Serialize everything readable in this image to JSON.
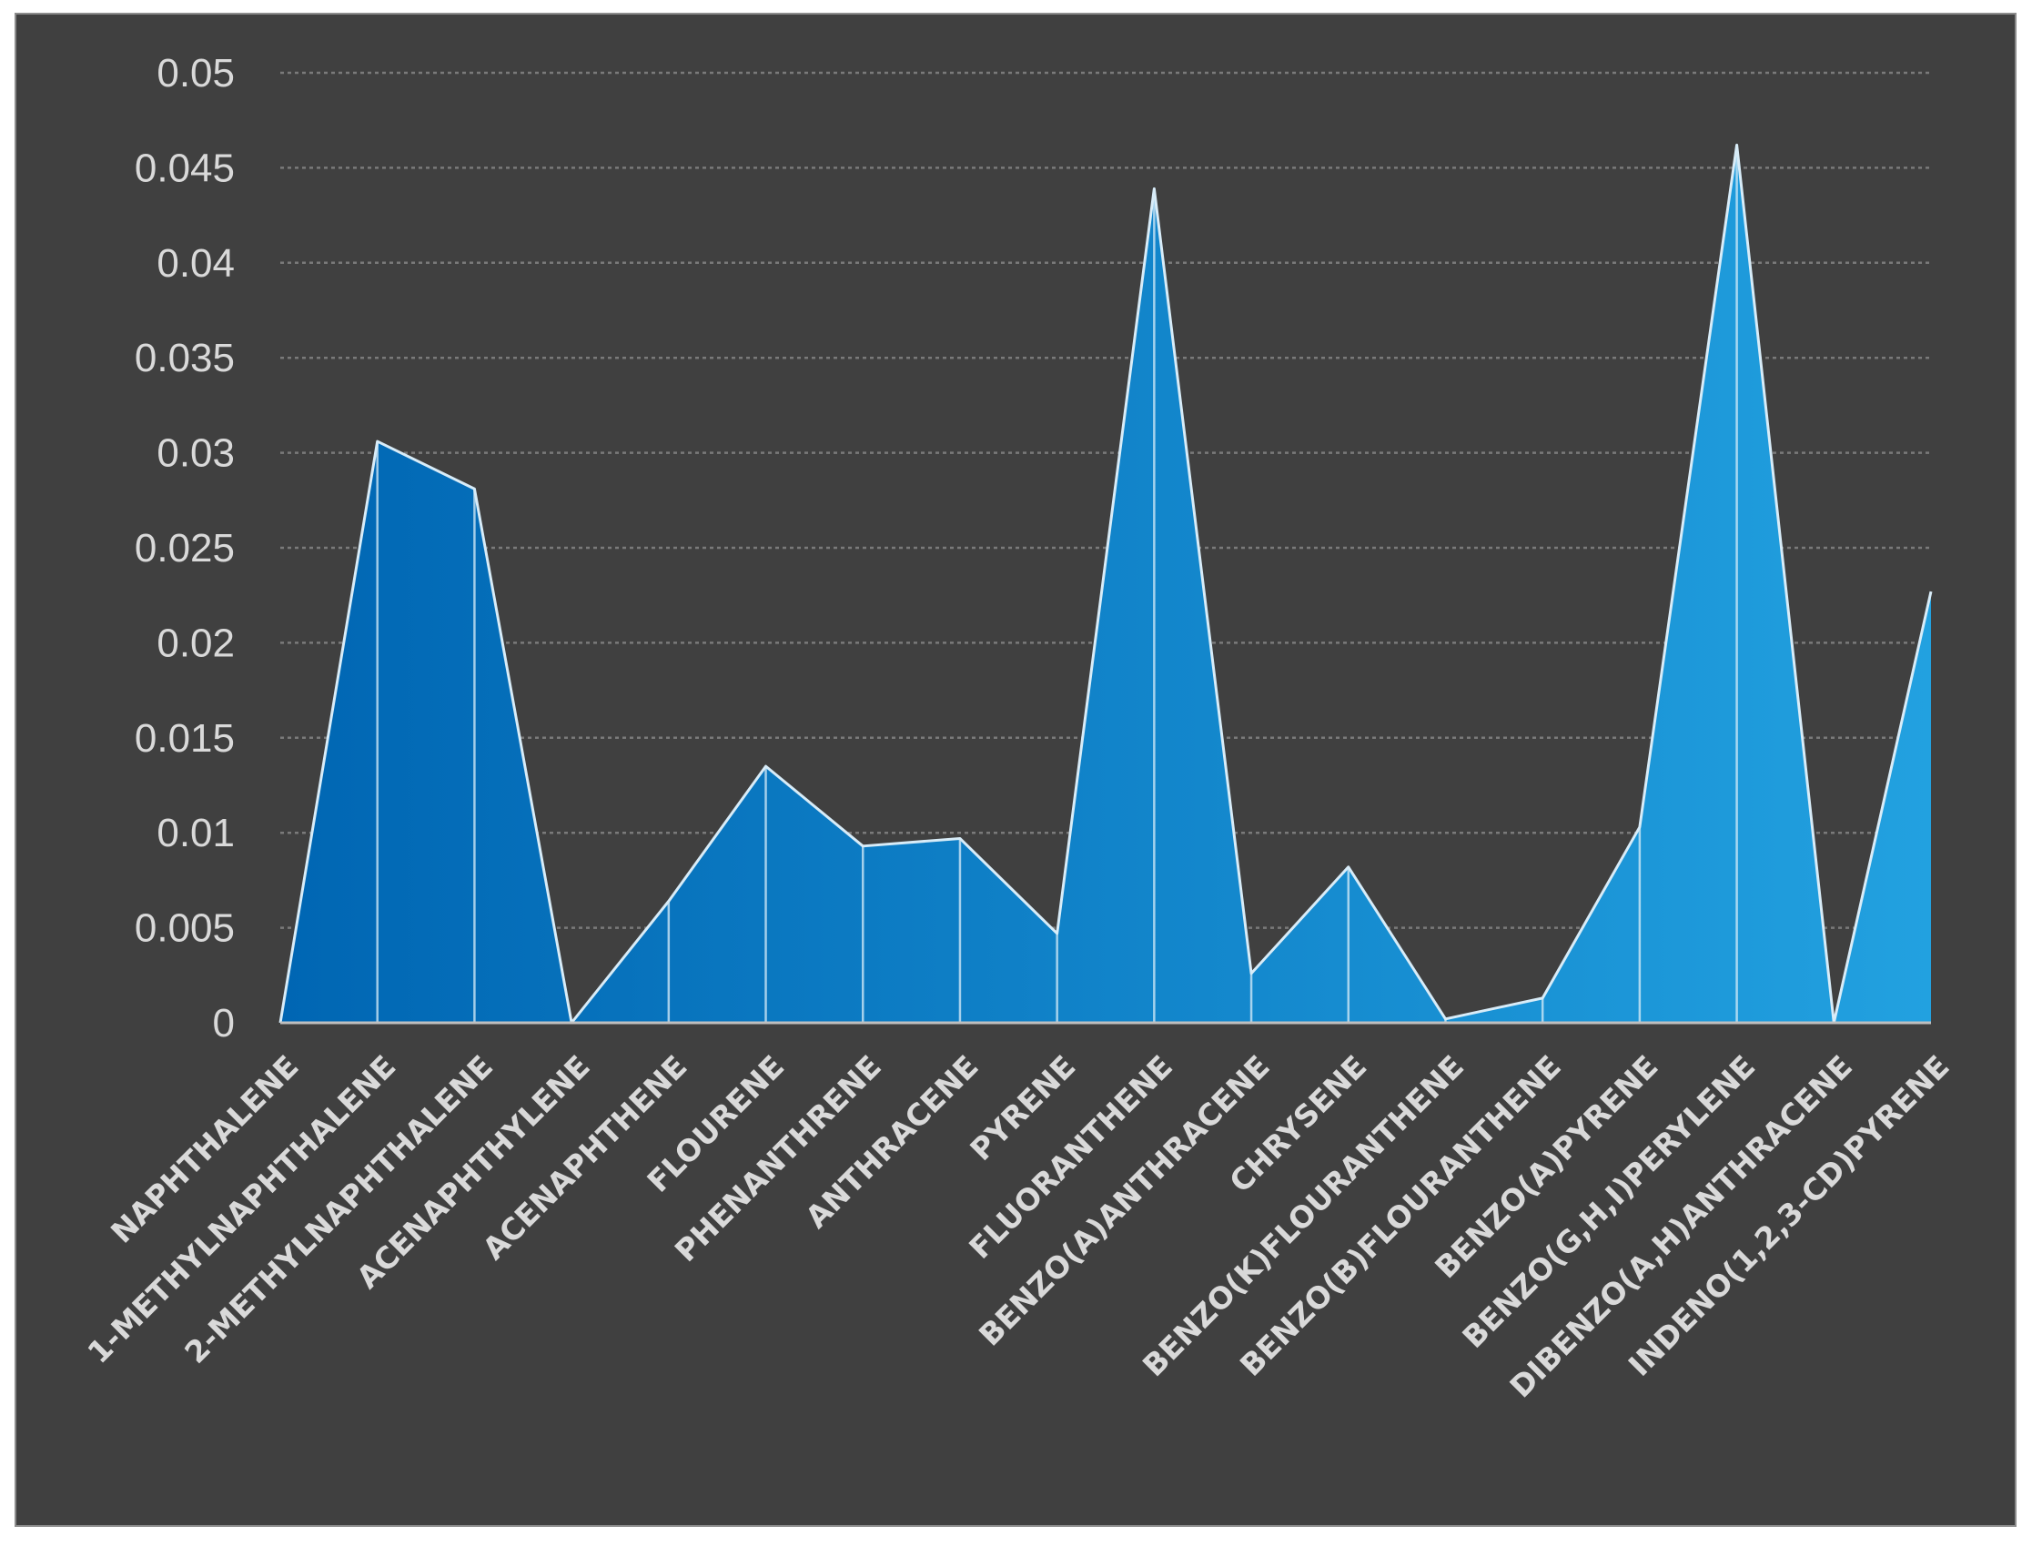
{
  "chart_data": {
    "type": "area",
    "title": "",
    "xlabel": "",
    "ylabel": "",
    "ylim": [
      0,
      0.05
    ],
    "yticks": [
      "0",
      "0.005",
      "0.01",
      "0.015",
      "0.02",
      "0.025",
      "0.03",
      "0.035",
      "0.04",
      "0.045",
      "0.05"
    ],
    "grid": true,
    "legend": "none",
    "categories": [
      "NAPHTHALENE",
      "1-METHYLNAPHTHALENE",
      "2-METHYLNAPHTHALENE",
      "ACENAPHTHYLENE",
      "ACENAPHTHENE",
      "FLOURENE",
      "PHENANTHRENE",
      "ANTHRACENE",
      "PYRENE",
      "FLUORANTHENE",
      "BENZO(A)ANTHRACENE",
      "CHRYSENE",
      "BENZO(K)FLOURANTHENE",
      "BENZO(B)FLOURANTHENE",
      "BENZO(A)PYRENE",
      "BENZO(G,H,I)PERYLENE",
      "DIBENZO(A,H)ANTHRACENE",
      "INDENO(1,2,3-CD)PYRENE"
    ],
    "series": [
      {
        "name": "Series 1",
        "values": [
          0,
          0.0306,
          0.0281,
          0,
          0.0064,
          0.0135,
          0.0093,
          0.0097,
          0.0047,
          0.0439,
          0.0026,
          0.0082,
          0.0002,
          0.0013,
          0.0103,
          0.0462,
          0,
          0.0227
        ]
      }
    ],
    "colors": {
      "background": "#404040",
      "frame_border": "#8c8c8c",
      "fill_start": "#0066b3",
      "fill_end": "#22a1e0",
      "outline": "#d8ecf8",
      "text": "#d9d9d9",
      "grid": "#7a7a7a"
    }
  }
}
